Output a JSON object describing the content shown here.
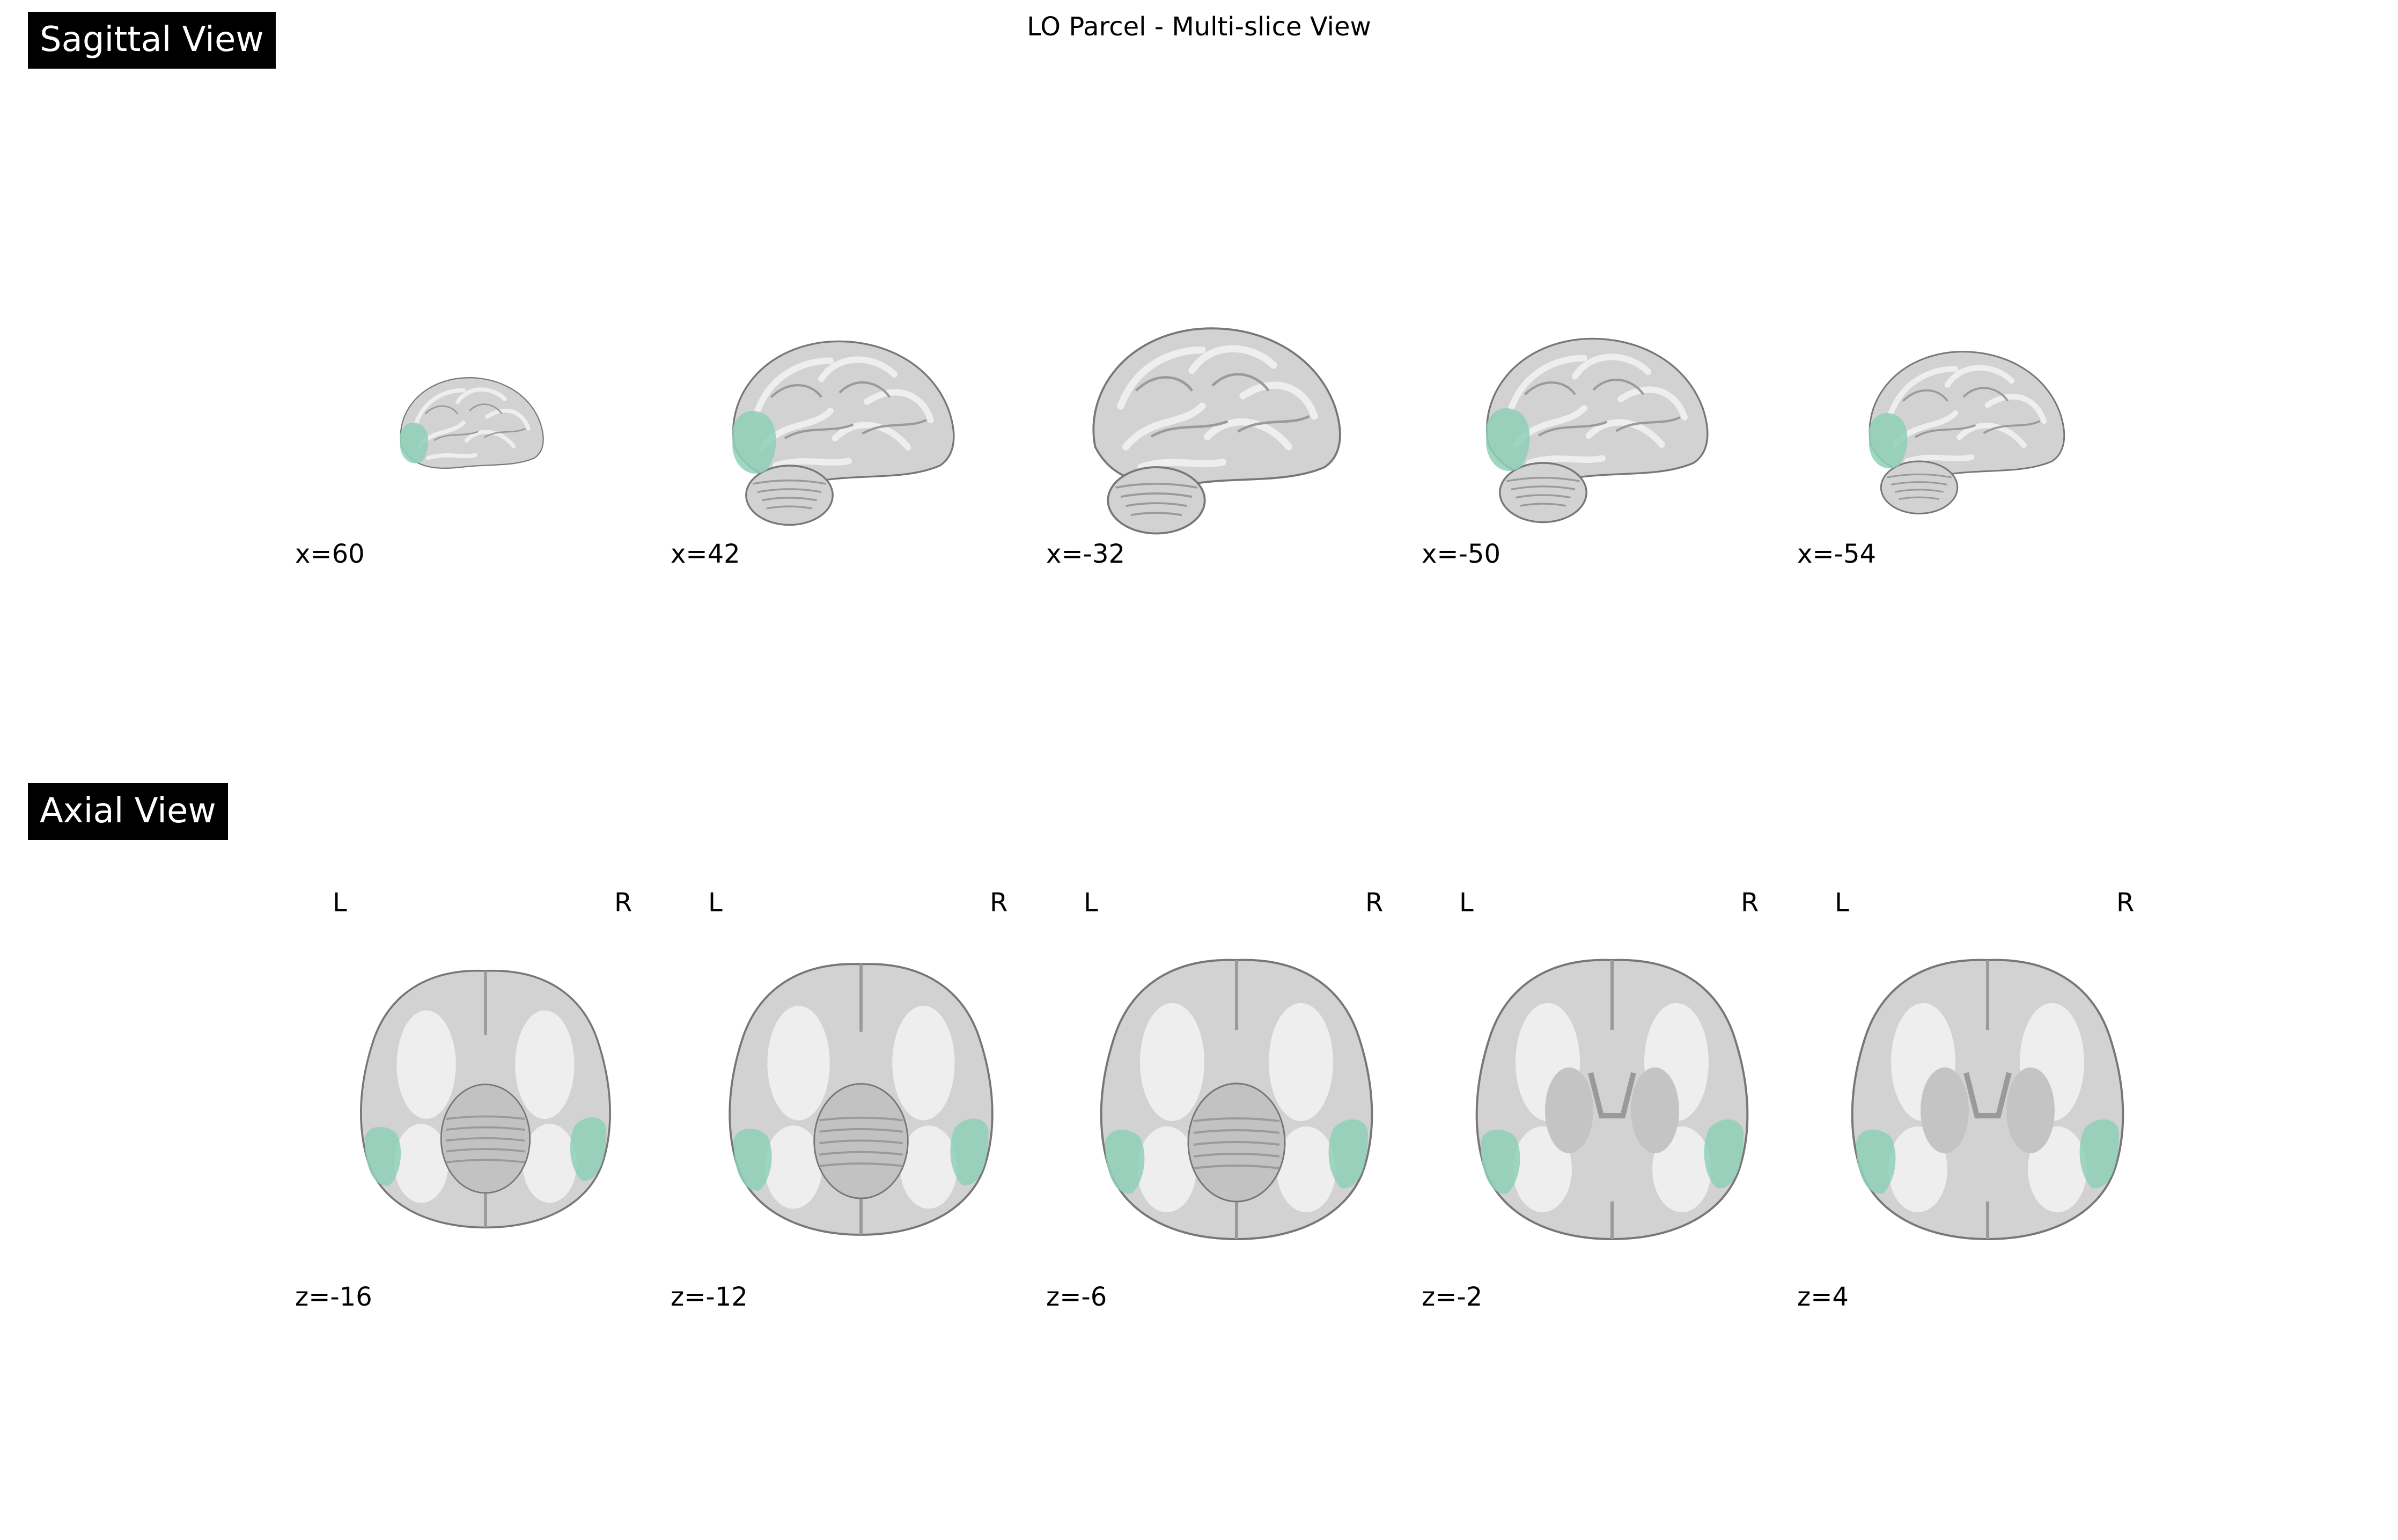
{
  "title": "LO Parcel - Multi-slice View",
  "sagittal": {
    "label": "Sagittal View",
    "slices": [
      "x=60",
      "x=42",
      "x=-32",
      "x=-50",
      "x=-54"
    ]
  },
  "axial": {
    "label": "Axial View",
    "orient_left": "L",
    "orient_right": "R",
    "slices": [
      "z=-16",
      "z=-12",
      "z=-6",
      "z=-2",
      "z=4"
    ]
  },
  "colors": {
    "parcel": "#8fd0b8",
    "brain": "#d2d2d2",
    "gyri": "#eeeeee",
    "sulci": "#9a9a9a",
    "outline": "#777777"
  }
}
